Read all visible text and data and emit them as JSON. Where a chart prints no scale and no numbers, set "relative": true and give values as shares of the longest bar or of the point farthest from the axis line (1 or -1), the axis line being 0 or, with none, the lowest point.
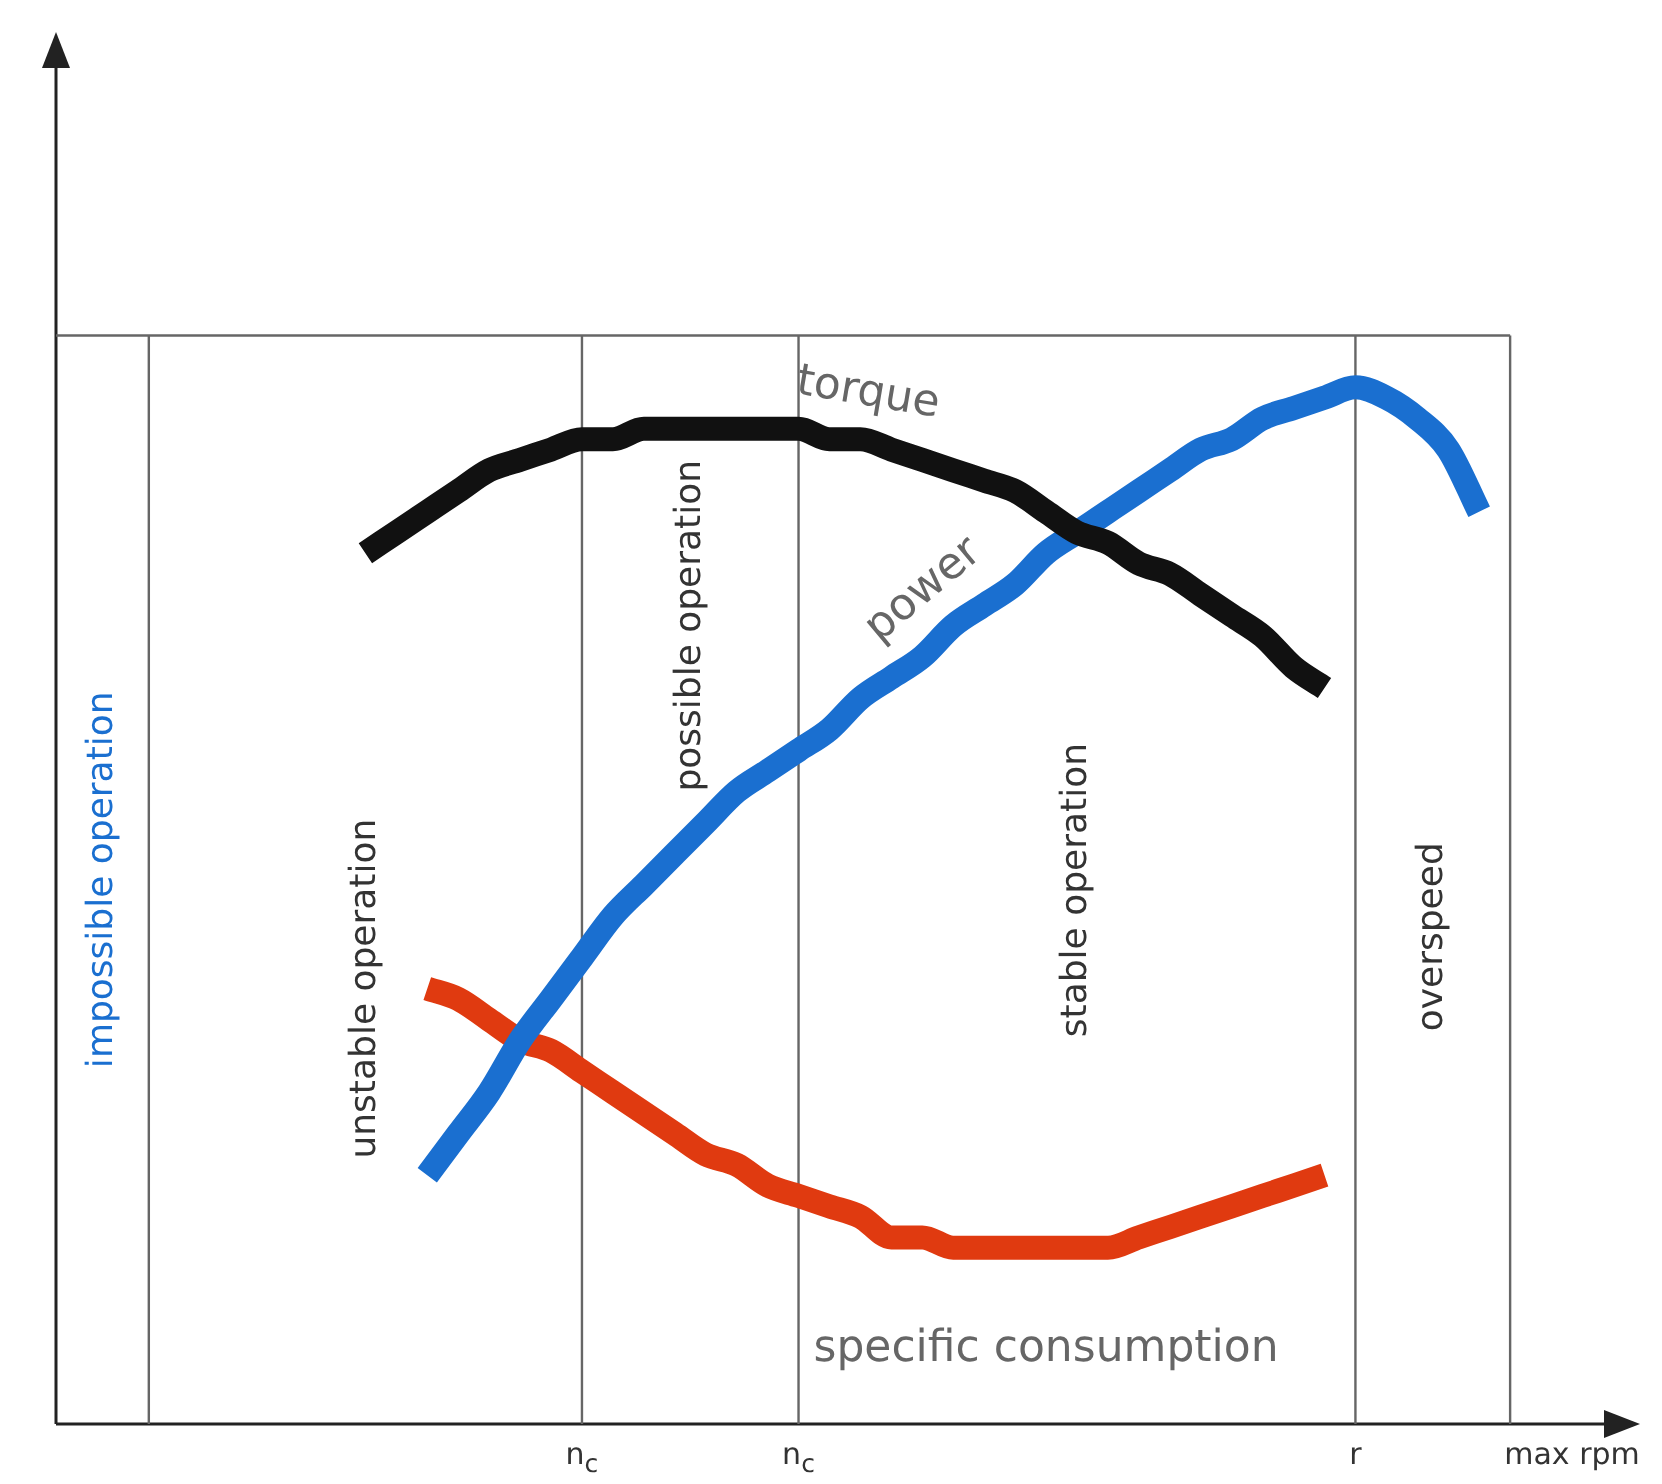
{
  "chart_data": {
    "type": "line",
    "relative": true,
    "categories": [
      null,
      null,
      null,
      null,
      null,
      null,
      null,
      null,
      null,
      null,
      null,
      null,
      null,
      null,
      null,
      null,
      null,
      "n$_{c}$",
      null,
      null,
      null,
      null,
      null,
      null,
      "n$_{c}$",
      null,
      null,
      null,
      null,
      null,
      null,
      null,
      null,
      null,
      null,
      null,
      null,
      null,
      null,
      null,
      null,
      null,
      "r",
      null,
      null,
      null,
      null,
      null,
      null,
      "max rpm"
    ],
    "series": [
      {
        "name": "torque",
        "color": "#111111",
        "values": [
          null,
          null,
          null,
          null,
          null,
          null,
          null,
          null,
          null,
          null,
          0.84,
          0.86,
          0.88,
          0.9,
          0.92,
          0.93,
          0.94,
          0.95,
          0.95,
          0.96,
          0.96,
          0.96,
          0.96,
          0.96,
          0.96,
          0.95,
          0.95,
          0.94,
          0.93,
          0.92,
          0.91,
          0.9,
          0.88,
          0.86,
          0.85,
          0.83,
          0.82,
          0.8,
          0.78,
          0.76,
          0.73,
          0.71,
          null,
          null,
          null,
          null,
          null,
          null,
          null,
          null
        ]
      },
      {
        "name": "power",
        "color": "#1a6fd0",
        "values": [
          null,
          null,
          null,
          null,
          null,
          null,
          null,
          null,
          null,
          null,
          null,
          null,
          0.24,
          0.28,
          0.32,
          0.37,
          0.41,
          0.45,
          0.49,
          0.52,
          0.55,
          0.58,
          0.61,
          0.63,
          0.65,
          0.67,
          0.7,
          0.72,
          0.74,
          0.77,
          0.79,
          0.81,
          0.84,
          0.86,
          0.88,
          0.9,
          0.92,
          0.94,
          0.95,
          0.97,
          0.98,
          0.99,
          1.0,
          0.99,
          0.97,
          0.94,
          0.88,
          null,
          null,
          null
        ]
      },
      {
        "name": "specific consumption",
        "color": "#e03a10",
        "values": [
          null,
          null,
          null,
          null,
          null,
          null,
          null,
          null,
          null,
          null,
          null,
          null,
          0.42,
          0.41,
          0.39,
          0.37,
          0.36,
          0.34,
          0.32,
          0.3,
          0.28,
          0.26,
          0.25,
          0.23,
          0.22,
          0.21,
          0.2,
          0.18,
          0.18,
          0.17,
          0.17,
          0.17,
          0.17,
          0.17,
          0.17,
          0.18,
          0.19,
          0.2,
          0.21,
          0.22,
          0.23,
          0.24,
          null,
          null,
          null,
          null,
          null,
          null,
          null,
          null
        ]
      }
    ],
    "ref_lines": [
      {
        "axis": "y",
        "value": 1.05
      }
    ],
    "annotations": [
      "impossible operation",
      "unstable operation",
      "possible operation",
      "stable operation",
      "overspeed"
    ],
    "grid": "x",
    "legend": false,
    "marker": "none",
    "line_style": "solid"
  }
}
